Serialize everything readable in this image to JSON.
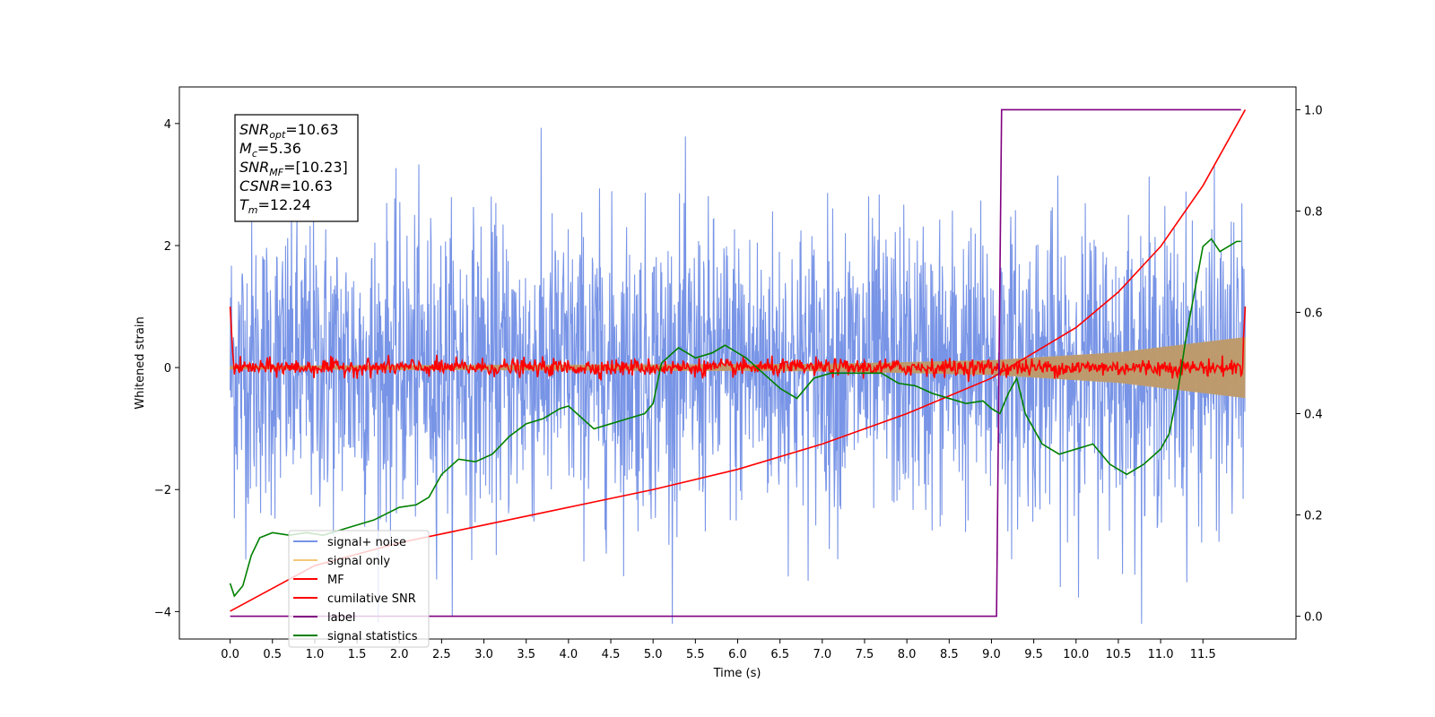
{
  "chart_data": {
    "type": "line",
    "xlabel": "Time (s)",
    "ylabel_left": "Whitened strain",
    "ylabel_right": "",
    "xlim": [
      -0.6,
      12.6
    ],
    "ylim_left": [
      -4.45,
      4.6
    ],
    "ylim_right": [
      -0.045,
      1.045
    ],
    "xticks": [
      0.0,
      0.5,
      1.0,
      1.5,
      2.0,
      2.5,
      3.0,
      3.5,
      4.0,
      4.5,
      5.0,
      5.5,
      6.0,
      6.5,
      7.0,
      7.5,
      8.0,
      8.5,
      9.0,
      9.5,
      10.0,
      10.5,
      11.0,
      11.5
    ],
    "xtick_labels": [
      "0.0",
      "0.5",
      "1.0",
      "1.5",
      "2.0",
      "2.5",
      "3.0",
      "3.5",
      "4.0",
      "4.5",
      "5.0",
      "5.5",
      "6.0",
      "6.5",
      "7.0",
      "7.5",
      "8.0",
      "8.5",
      "9.0",
      "9.5",
      "10.0",
      "10.5",
      "11.0",
      "11.5"
    ],
    "yticks_left": [
      -4,
      -2,
      0,
      2,
      4
    ],
    "ytick_labels_left": [
      "−4",
      "−2",
      "0",
      "2",
      "4"
    ],
    "yticks_right": [
      0.0,
      0.2,
      0.4,
      0.6,
      0.8,
      1.0
    ],
    "ytick_labels_right": [
      "0.0",
      "0.2",
      "0.4",
      "0.6",
      "0.8",
      "1.0"
    ],
    "grid": false,
    "legend_position": "lower-left",
    "annotation": {
      "lines": [
        {
          "main": "SNR",
          "sub": "opt",
          "rest": "=10.63"
        },
        {
          "main": "M",
          "sub": "c",
          "rest": "=5.36"
        },
        {
          "main": "SNR",
          "sub": "MF",
          "rest": "=[10.23]"
        },
        {
          "main": "CSNR",
          "sub": "",
          "rest": "=10.63"
        },
        {
          "main": "T",
          "sub": "m",
          "rest": "=12.24"
        }
      ]
    },
    "series": [
      {
        "name": "signal+ noise",
        "axis": "left",
        "color": "#7894e6",
        "kind": "noise",
        "amplitude_approx": 1.2,
        "peak_approx": 4.2,
        "x_range": [
          0.0,
          12.0
        ]
      },
      {
        "name": "signal only",
        "axis": "left",
        "color": "#f5c878",
        "kind": "chirp",
        "envelope": {
          "x": [
            0.0,
            7.0,
            9.0,
            10.5,
            12.0
          ],
          "y": [
            0.03,
            0.06,
            0.12,
            0.25,
            0.5
          ]
        }
      },
      {
        "name": "MF",
        "axis": "left",
        "color": "#ff0000",
        "kind": "matched-filter",
        "start": 1.0,
        "end": 1.0,
        "noise_approx": 0.07
      },
      {
        "name": "cumilative SNR",
        "axis": "right",
        "color": "#ff0000",
        "x": [
          0.0,
          1.0,
          2.0,
          3.0,
          4.0,
          5.0,
          6.0,
          7.0,
          8.0,
          9.0,
          10.0,
          10.5,
          11.0,
          11.5,
          12.0
        ],
        "y": [
          0.01,
          0.1,
          0.145,
          0.18,
          0.215,
          0.25,
          0.29,
          0.34,
          0.4,
          0.47,
          0.57,
          0.64,
          0.73,
          0.85,
          1.0
        ]
      },
      {
        "name": "label",
        "axis": "right",
        "color": "#800080",
        "x": [
          0.0,
          9.06,
          9.12,
          11.95
        ],
        "y": [
          0.0,
          0.0,
          1.0,
          1.0
        ]
      },
      {
        "name": "signal statistics",
        "axis": "right",
        "color": "#008000",
        "x": [
          0.0,
          0.05,
          0.15,
          0.25,
          0.35,
          0.5,
          0.7,
          0.9,
          1.1,
          1.4,
          1.7,
          2.0,
          2.2,
          2.35,
          2.5,
          2.7,
          2.9,
          3.1,
          3.3,
          3.5,
          3.7,
          3.9,
          4.0,
          4.1,
          4.3,
          4.5,
          4.7,
          4.9,
          5.0,
          5.1,
          5.3,
          5.5,
          5.7,
          5.85,
          6.0,
          6.1,
          6.3,
          6.5,
          6.7,
          6.9,
          7.1,
          7.3,
          7.5,
          7.7,
          7.9,
          8.1,
          8.3,
          8.5,
          8.7,
          8.9,
          9.0,
          9.1,
          9.2,
          9.3,
          9.4,
          9.6,
          9.8,
          10.0,
          10.2,
          10.4,
          10.6,
          10.8,
          11.0,
          11.1,
          11.2,
          11.3,
          11.4,
          11.5,
          11.6,
          11.7,
          11.8,
          11.9,
          11.95
        ],
        "y": [
          0.065,
          0.04,
          0.06,
          0.12,
          0.155,
          0.165,
          0.16,
          0.165,
          0.16,
          0.175,
          0.19,
          0.215,
          0.22,
          0.235,
          0.28,
          0.31,
          0.305,
          0.32,
          0.355,
          0.38,
          0.39,
          0.41,
          0.415,
          0.4,
          0.37,
          0.38,
          0.39,
          0.4,
          0.42,
          0.5,
          0.53,
          0.51,
          0.52,
          0.535,
          0.52,
          0.51,
          0.48,
          0.45,
          0.43,
          0.47,
          0.48,
          0.48,
          0.48,
          0.48,
          0.46,
          0.455,
          0.44,
          0.43,
          0.42,
          0.425,
          0.41,
          0.4,
          0.44,
          0.47,
          0.4,
          0.34,
          0.32,
          0.33,
          0.34,
          0.3,
          0.28,
          0.3,
          0.33,
          0.36,
          0.44,
          0.55,
          0.64,
          0.73,
          0.745,
          0.72,
          0.73,
          0.74,
          0.74
        ]
      }
    ]
  }
}
